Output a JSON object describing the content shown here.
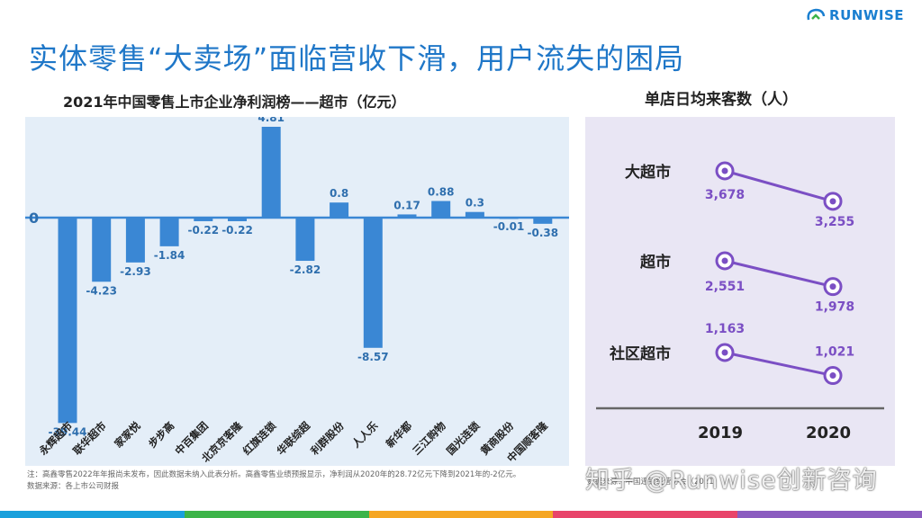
{
  "header": {
    "title": "实体零售“大卖场”面临营收下滑，用户流失的困局",
    "logo_text": "RUNWISE"
  },
  "colors": {
    "title": "#1f77c8",
    "bar": "#3a87d4",
    "bar_label": "#2f6fae",
    "line": "#7b4fc4",
    "left_bg": "#e4eef8",
    "right_bg": "#e9e6f4",
    "stripe": [
      "#19a0dc",
      "#3cb449",
      "#f5a623",
      "#e8446a",
      "#8b5cc0"
    ]
  },
  "chart_data": [
    {
      "type": "bar",
      "title": "2021年中国零售上市企业净利润榜——超市（亿元）",
      "categories": [
        "永辉超市",
        "联华超市",
        "家家悦",
        "步步高",
        "中百集团",
        "北京京客隆",
        "红旗连锁",
        "华联综超",
        "利群股份",
        "人人乐",
        "新华都",
        "三江购物",
        "国光连锁",
        "黄商股份",
        "中国顺客隆"
      ],
      "values": [
        -39.44,
        -4.23,
        -2.93,
        -1.84,
        -0.22,
        -0.22,
        4.81,
        -2.82,
        0.8,
        -8.57,
        0.17,
        0.88,
        0.3,
        -0.01,
        -0.38
      ],
      "value_labels": [
        "-39.44",
        "-4.23",
        "-2.93",
        "-1.84",
        "-0.22",
        "-0.22",
        "4.81",
        "-2.82",
        "0.8",
        "-8.57",
        "0.17",
        "0.88",
        "0.3",
        "-0.01",
        "-0.38"
      ],
      "zero_label": "0",
      "grid": false,
      "legend": "none"
    },
    {
      "type": "line",
      "title": "单店日均来客数（人）",
      "x": [
        "2019",
        "2020"
      ],
      "series": [
        {
          "name": "大超市",
          "values": [
            3678,
            3255
          ],
          "labels": [
            "3,678",
            "3,255"
          ]
        },
        {
          "name": "超市",
          "values": [
            2551,
            1978
          ],
          "labels": [
            "2,551",
            "1,978"
          ]
        },
        {
          "name": "社区超市",
          "values": [
            1163,
            1021
          ],
          "labels": [
            "1,163",
            "1,021"
          ]
        }
      ],
      "grid": false,
      "legend": "none"
    }
  ],
  "footnote": {
    "line1": "注：高鑫零售2022年年报尚未发布，因此数据未纳入此表分析。高鑫零售业绩预报显示，净利润从2020年的28.72亿元下降到2021年的-2亿元。",
    "line2": "数据来源：各上市公司财报",
    "right": "数据来源：中国连锁经营协会（2021）"
  },
  "watermark": "知乎 @Runwise创新咨询"
}
